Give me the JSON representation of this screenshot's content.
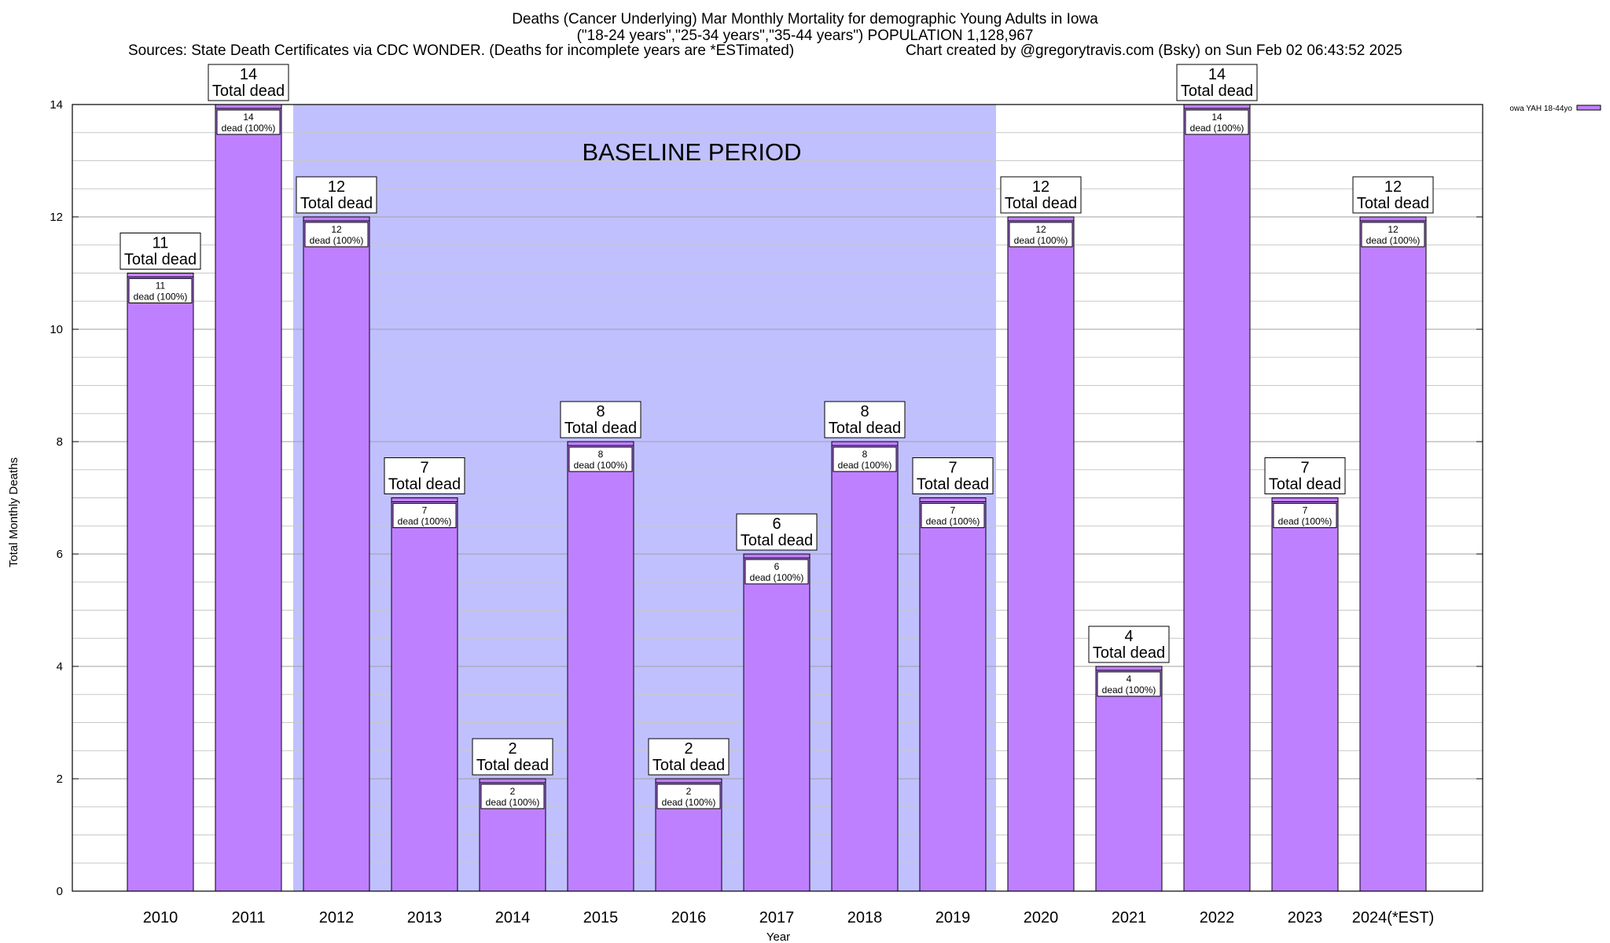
{
  "header": {
    "title_line1": "Deaths (Cancer Underlying) Mar Monthly Mortality for demographic Young Adults in Iowa",
    "title_line2": "(\"18-24 years\",\"25-34 years\",\"35-44 years\") POPULATION 1,128,967",
    "sources": "Sources: State Death Certificates via CDC WONDER. (Deaths for incomplete years are *ESTimated)",
    "credit": "Chart created by @gregorytravis.com (Bsky) on Sun Feb 02 06:43:52 2025"
  },
  "chart_data": {
    "type": "bar",
    "title": "Deaths (Cancer Underlying) Mar Monthly Mortality for demographic Young Adults in Iowa",
    "xlabel": "Year",
    "ylabel": "Total Monthly Deaths",
    "ylim": [
      0,
      14
    ],
    "yticks": [
      0,
      2,
      4,
      6,
      8,
      10,
      12,
      14
    ],
    "minor_grid_step": 0.5,
    "grid": true,
    "categories": [
      "2010",
      "2011",
      "2012",
      "2013",
      "2014",
      "2015",
      "2016",
      "2017",
      "2018",
      "2019",
      "2020",
      "2021",
      "2022",
      "2023",
      "2024(*EST)"
    ],
    "series": [
      {
        "name": "owa YAH 18-44yo",
        "color": "#bf80ff",
        "values": [
          11,
          14,
          12,
          7,
          2,
          8,
          2,
          6,
          8,
          7,
          12,
          4,
          14,
          7,
          12
        ]
      }
    ],
    "total_label_suffix": "Total dead",
    "inner_label_suffix": "dead (100%)",
    "baseline": {
      "label": "BASELINE PERIOD",
      "from": "2012",
      "to": "2019",
      "color": "#c0c0ff"
    },
    "legend": {
      "position": "top-right",
      "entries": [
        "owa YAH 18-44yo"
      ]
    }
  }
}
